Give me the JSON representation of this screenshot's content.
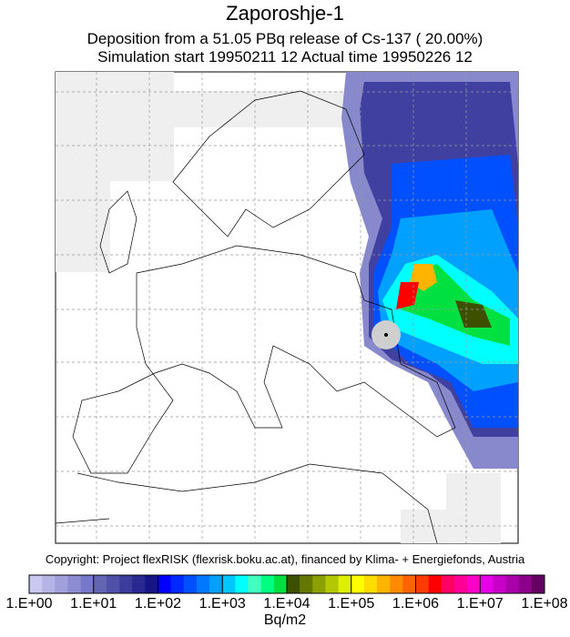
{
  "title": "Zaporoshje-1",
  "subtitle": [
    "Deposition from a   51.05 PBq release of Cs-137 ( 20.00%)",
    "Simulation start 19950211 12   Actual time  19950226 12"
  ],
  "copyright": "Copyright: Project flexRISK (flexrisk.boku.ac.at), financed by Klima- + Energiefonds, Austria",
  "colorbar": {
    "colors": [
      "#c8c8f0",
      "#b4b4e6",
      "#a0a0dc",
      "#8c8cd2",
      "#7878c8",
      "#6464b4",
      "#5050a8",
      "#3c3c9c",
      "#282890",
      "#141484",
      "#0000ff",
      "#0028ff",
      "#0050ff",
      "#0078ff",
      "#00a0ff",
      "#00c8ff",
      "#00ffff",
      "#40ffc0",
      "#00ff80",
      "#00e040",
      "#3c5000",
      "#647800",
      "#8ca000",
      "#b4c800",
      "#dcf000",
      "#ffff00",
      "#ffdc00",
      "#ffb400",
      "#ff8c00",
      "#ff6400",
      "#ff3c00",
      "#ff0000",
      "#ff0064",
      "#ff0096",
      "#ff00c8",
      "#e600e6",
      "#c800c8",
      "#aa00aa",
      "#8c008c",
      "#640064"
    ],
    "labels": [
      "1.E+00",
      "1.E+01",
      "1.E+02",
      "1.E+03",
      "1.E+04",
      "1.E+05",
      "1.E+06",
      "1.E+07",
      "1.E+08"
    ],
    "unit": "Bq/m2"
  }
}
